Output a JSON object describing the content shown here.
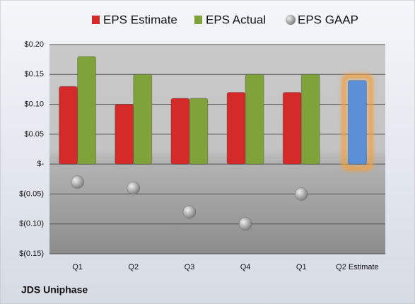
{
  "chart_data": {
    "type": "bar",
    "footer": "JDS Uniphase",
    "categories": [
      "Q1",
      "Q2",
      "Q3",
      "Q4",
      "Q1",
      "Q2 Estimate"
    ],
    "series": [
      {
        "name": "EPS Estimate",
        "color": "#d42a2a",
        "highlight_color": "#5b8fd6",
        "values": [
          0.13,
          0.1,
          0.11,
          0.12,
          0.12,
          0.14
        ]
      },
      {
        "name": "EPS Actual",
        "color": "#7fa33a",
        "values": [
          0.18,
          0.15,
          0.11,
          0.15,
          0.15,
          null
        ]
      },
      {
        "name": "EPS GAAP",
        "color": "#9a9a9a",
        "values": [
          -0.03,
          -0.04,
          -0.08,
          -0.1,
          -0.05,
          null
        ]
      }
    ],
    "ylim": [
      -0.15,
      0.2
    ],
    "yticks": [
      {
        "value": -0.15,
        "label": "$(0.15)"
      },
      {
        "value": -0.1,
        "label": "$(0.10)"
      },
      {
        "value": -0.05,
        "label": "$(0.05)"
      },
      {
        "value": 0,
        "label": "$-"
      },
      {
        "value": 0.05,
        "label": "$0.05"
      },
      {
        "value": 0.1,
        "label": "$0.10"
      },
      {
        "value": 0.15,
        "label": "$0.15"
      },
      {
        "value": 0.2,
        "label": "$0.20"
      }
    ],
    "grid": true
  }
}
